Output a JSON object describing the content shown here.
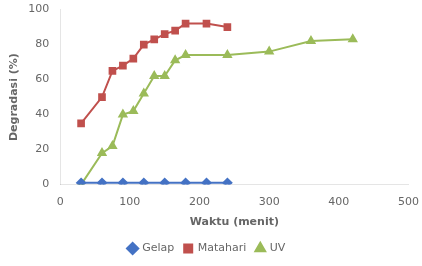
{
  "chart_data": {
    "type": "line",
    "x_label": "Waktu (menit)",
    "y_label": "Degradasi (%)",
    "series": [
      {
        "name": "Gelap",
        "color": "#4472C4",
        "marker": "diamond",
        "x": [
          30,
          60,
          90,
          120,
          150,
          180,
          210,
          240
        ],
        "values": [
          1,
          1,
          1,
          1,
          1,
          1,
          1,
          1
        ]
      },
      {
        "name": "Matahari",
        "color": "#C0504D",
        "marker": "square",
        "x": [
          30,
          60,
          75,
          90,
          105,
          120,
          135,
          150,
          165,
          180,
          210,
          240
        ],
        "values": [
          35,
          50,
          65,
          68,
          72,
          80,
          83,
          86,
          88,
          92,
          92,
          90
        ]
      },
      {
        "name": "UV",
        "color": "#9BBB59",
        "marker": "triangle",
        "x": [
          30,
          60,
          75,
          90,
          105,
          120,
          135,
          150,
          165,
          180,
          240,
          300,
          360,
          420
        ],
        "values": [
          0,
          18,
          22,
          40,
          42,
          52,
          62,
          62,
          71,
          74,
          74,
          76,
          82,
          83
        ]
      }
    ],
    "xlim": [
      0,
      500
    ],
    "ylim": [
      0,
      100
    ],
    "xticks": [
      0,
      100,
      200,
      300,
      400,
      500
    ],
    "yticks": [
      0,
      20,
      40,
      60,
      80,
      100
    ],
    "grid": false,
    "legend": "bottom"
  }
}
